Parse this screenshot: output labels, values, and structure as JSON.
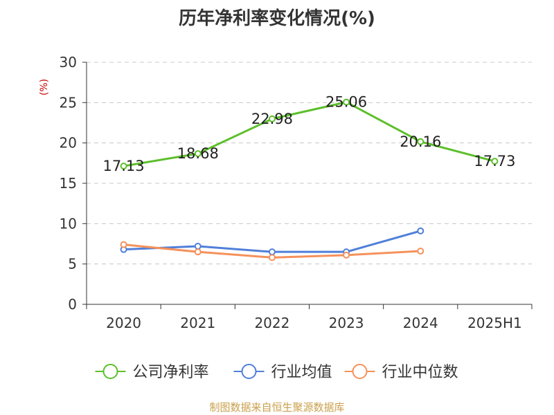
{
  "colors": {
    "company": "#5cbf2a",
    "industry_avg": "#4f7fd9",
    "industry_median": "#f5915a",
    "grid": "#c8c8c8",
    "axis": "#333333",
    "unit_label": "#cc0000",
    "footer": "#c9a04b"
  },
  "footer": {
    "source_text": "制图数据来自恒生聚源数据库"
  },
  "chart_data": {
    "type": "line",
    "title": "历年净利率变化情况(%)",
    "ylabel": "(%)",
    "xlabel": "",
    "categories": [
      "2020",
      "2021",
      "2022",
      "2023",
      "2024",
      "2025H1"
    ],
    "ylim": [
      0,
      30
    ],
    "yticks": [
      0,
      5,
      10,
      15,
      20,
      25,
      30
    ],
    "grid": true,
    "legend_position": "bottom",
    "series": [
      {
        "name": "公司净利率",
        "values": [
          17.13,
          18.68,
          22.98,
          25.06,
          20.16,
          17.73
        ],
        "labels": [
          "17.13",
          "18.68",
          "22.98",
          "25.06",
          "20.16",
          "17.73"
        ],
        "color": "#5cbf2a"
      },
      {
        "name": "行业均值",
        "values": [
          6.8,
          7.2,
          6.5,
          6.5,
          9.1,
          null
        ],
        "color": "#4f7fd9"
      },
      {
        "name": "行业中位数",
        "values": [
          7.4,
          6.5,
          5.8,
          6.1,
          6.6,
          null
        ],
        "color": "#f5915a"
      }
    ]
  }
}
